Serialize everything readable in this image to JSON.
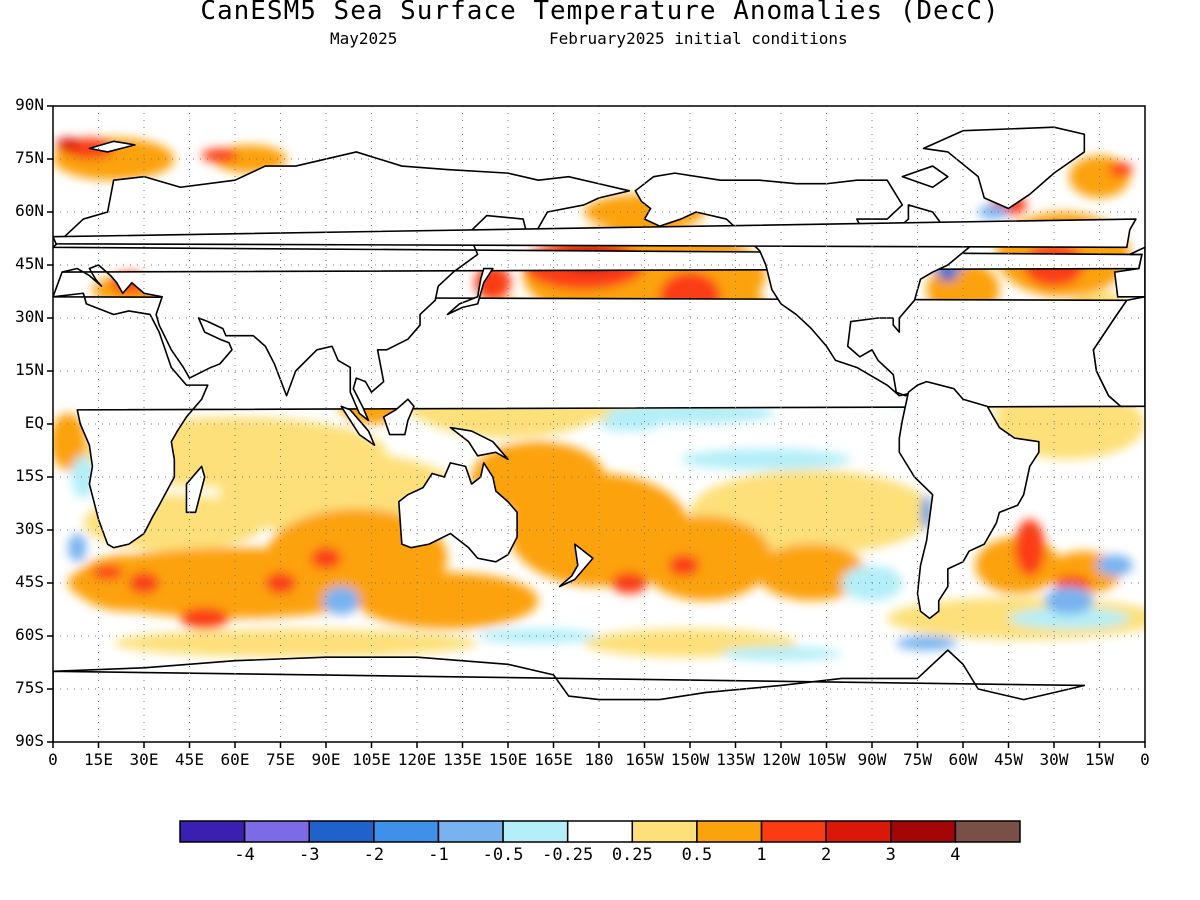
{
  "title": "CanESM5 Sea Surface Temperature Anomalies (DecC)",
  "subtitle_left": "May2025",
  "subtitle_right": "February2025 initial conditions",
  "y_axis_labels": [
    "90N",
    "75N",
    "60N",
    "45N",
    "30N",
    "15N",
    "EQ",
    "15S",
    "30S",
    "45S",
    "60S",
    "75S",
    "90S"
  ],
  "x_axis_labels": [
    "0",
    "15E",
    "30E",
    "45E",
    "60E",
    "75E",
    "90E",
    "105E",
    "120E",
    "135E",
    "150E",
    "165E",
    "180",
    "165W",
    "150W",
    "135W",
    "120W",
    "105W",
    "90W",
    "75W",
    "60W",
    "45W",
    "30W",
    "15W",
    "0"
  ],
  "colorbar": {
    "colors": [
      "#3a1fb0",
      "#7d6ae6",
      "#1f62cc",
      "#3e90e8",
      "#78b3f0",
      "#b4eef8",
      "#ffffff",
      "#fde07a",
      "#fca20c",
      "#fb3c12",
      "#db1708",
      "#a40607",
      "#7a4f45"
    ],
    "labels": [
      "-4",
      "-3",
      "-2",
      "-1",
      "-0.5",
      "-0.25",
      "0.25",
      "0.5",
      "1",
      "2",
      "3",
      "4"
    ]
  },
  "map": {
    "lon_range": [
      0,
      360
    ],
    "lat_range": [
      -90,
      90
    ],
    "grid": "dotted",
    "colors": {
      "warm_light": "#fde07a",
      "warm": "#fca20c",
      "warm_strong": "#fb3c12",
      "warm_very_strong": "#db1708",
      "warm_max": "#a40607",
      "cool_light": "#b4eef8",
      "cool": "#78b3f0",
      "cool_strong": "#3e90e8",
      "cool_very_strong": "#1f62cc"
    }
  }
}
